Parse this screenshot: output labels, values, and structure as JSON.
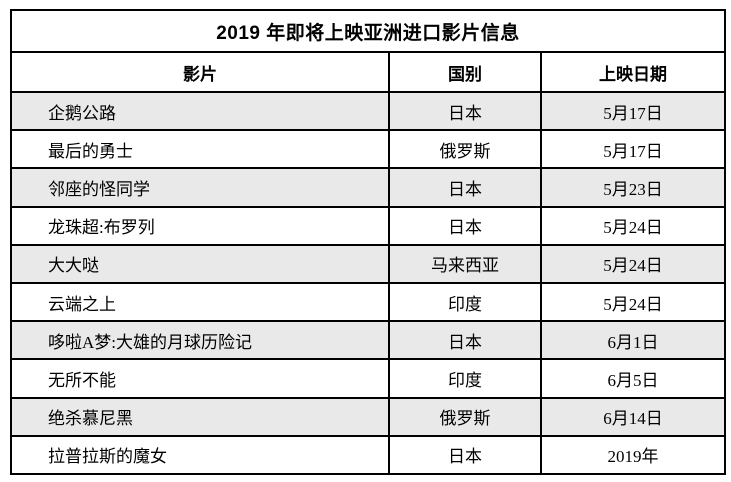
{
  "table": {
    "title": "2019 年即将上映亚洲进口影片信息",
    "columns": [
      "影片",
      "国别",
      "上映日期"
    ],
    "rows": [
      {
        "film": "企鹅公路",
        "country": "日本",
        "date": "5月17日",
        "shaded": true
      },
      {
        "film": "最后的勇士",
        "country": "俄罗斯",
        "date": "5月17日",
        "shaded": false
      },
      {
        "film": "邻座的怪同学",
        "country": "日本",
        "date": "5月23日",
        "shaded": true
      },
      {
        "film": "龙珠超:布罗列",
        "country": "日本",
        "date": "5月24日",
        "shaded": false
      },
      {
        "film": "大大哒",
        "country": "马来西亚",
        "date": "5月24日",
        "shaded": true
      },
      {
        "film": "云端之上",
        "country": "印度",
        "date": "5月24日",
        "shaded": false
      },
      {
        "film": "哆啦A梦:大雄的月球历险记",
        "country": "日本",
        "date": "6月1日",
        "shaded": true
      },
      {
        "film": "无所不能",
        "country": "印度",
        "date": "6月5日",
        "shaded": false
      },
      {
        "film": "绝杀慕尼黑",
        "country": "俄罗斯",
        "date": "6月14日",
        "shaded": true
      },
      {
        "film": "拉普拉斯的魔女",
        "country": "日本",
        "date": "2019年",
        "shaded": false
      }
    ],
    "colors": {
      "shaded_row": "#e9e9e9",
      "plain_row": "#ffffff",
      "border": "#000000",
      "text": "#000000"
    }
  }
}
